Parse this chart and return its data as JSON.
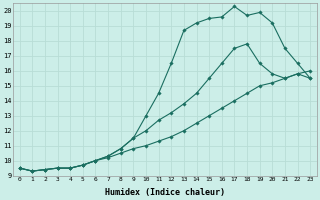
{
  "xlabel": "Humidex (Indice chaleur)",
  "bg_color": "#cceee8",
  "grid_color": "#b8ddd6",
  "line_color": "#1a6e60",
  "xlim": [
    -0.5,
    23.5
  ],
  "ylim": [
    9,
    20.5
  ],
  "xticks": [
    0,
    1,
    2,
    3,
    4,
    5,
    6,
    7,
    8,
    9,
    10,
    11,
    12,
    13,
    14,
    15,
    16,
    17,
    18,
    19,
    20,
    21,
    22,
    23
  ],
  "yticks": [
    9,
    10,
    11,
    12,
    13,
    14,
    15,
    16,
    17,
    18,
    19,
    20
  ],
  "line1_x": [
    0,
    1,
    2,
    3,
    4,
    5,
    6,
    7,
    8,
    9,
    10,
    11,
    12,
    13,
    14,
    15,
    16,
    17,
    18,
    19,
    20,
    21,
    22,
    23
  ],
  "line1_y": [
    9.5,
    9.3,
    9.4,
    9.5,
    9.5,
    9.7,
    10.0,
    10.3,
    10.8,
    11.5,
    13.0,
    14.5,
    16.5,
    18.7,
    19.2,
    19.5,
    19.6,
    20.3,
    19.7,
    19.9,
    19.2,
    17.5,
    16.5,
    15.5
  ],
  "line2_x": [
    0,
    1,
    2,
    3,
    4,
    5,
    6,
    7,
    8,
    9,
    10,
    11,
    12,
    13,
    14,
    15,
    16,
    17,
    18,
    19,
    20,
    21,
    22,
    23
  ],
  "line2_y": [
    9.5,
    9.3,
    9.4,
    9.5,
    9.5,
    9.7,
    10.0,
    10.3,
    10.8,
    11.5,
    12.0,
    12.7,
    13.2,
    13.8,
    14.5,
    15.5,
    16.5,
    17.5,
    17.8,
    16.5,
    15.8,
    15.5,
    15.8,
    15.5
  ],
  "line3_x": [
    0,
    1,
    2,
    3,
    4,
    5,
    6,
    7,
    8,
    9,
    10,
    11,
    12,
    13,
    14,
    15,
    16,
    17,
    18,
    19,
    20,
    21,
    22,
    23
  ],
  "line3_y": [
    9.5,
    9.3,
    9.4,
    9.5,
    9.5,
    9.7,
    10.0,
    10.2,
    10.5,
    10.8,
    11.0,
    11.3,
    11.6,
    12.0,
    12.5,
    13.0,
    13.5,
    14.0,
    14.5,
    15.0,
    15.2,
    15.5,
    15.8,
    16.0
  ]
}
